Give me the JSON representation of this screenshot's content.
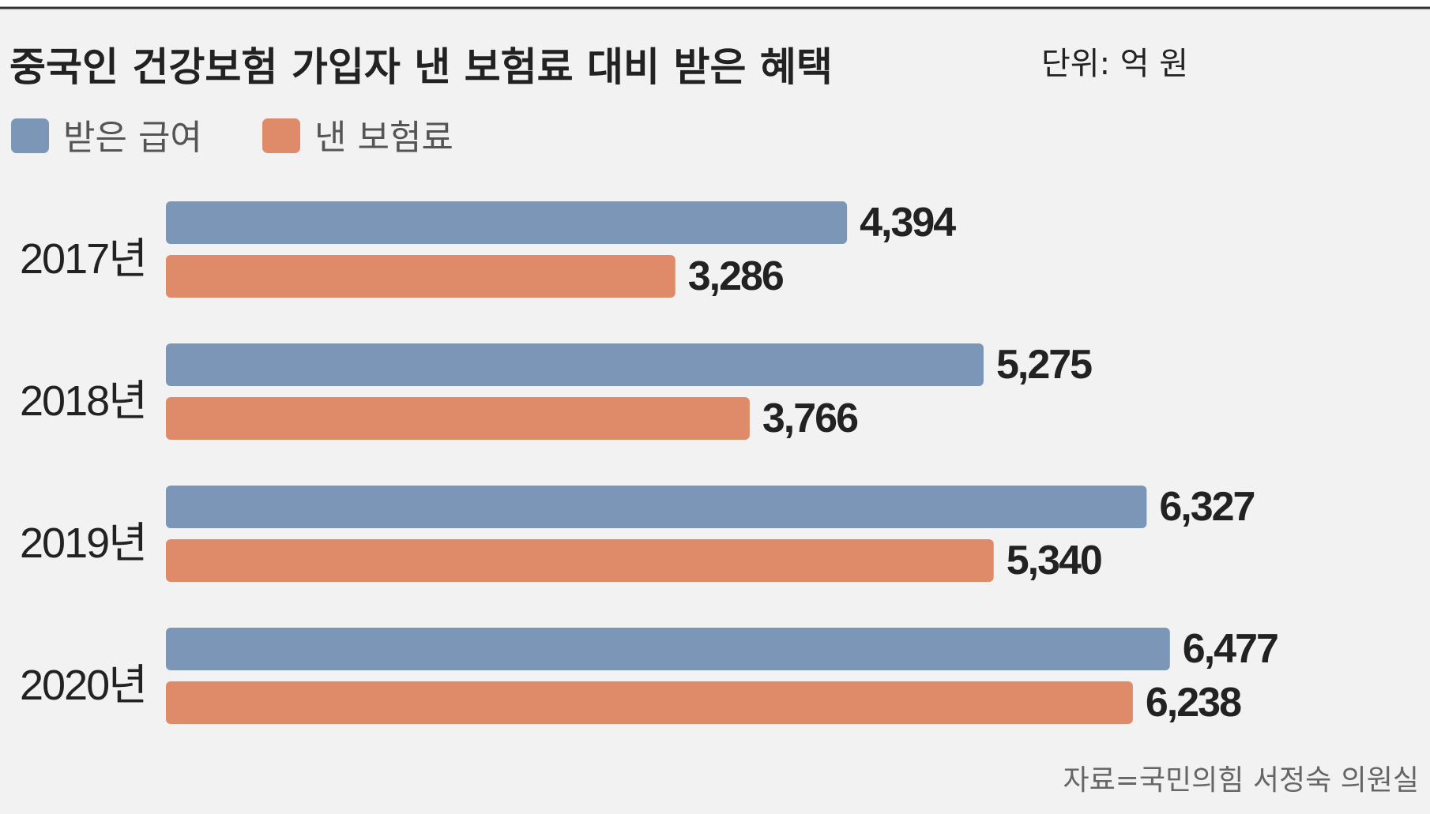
{
  "chart_data": {
    "type": "bar",
    "orientation": "horizontal",
    "title": "중국인 건강보험 가입자 낸 보험료 대비 받은 혜택",
    "unit": "단위: 억 원",
    "categories": [
      "2017년",
      "2018년",
      "2019년",
      "2020년"
    ],
    "series": [
      {
        "name": "받은 급여",
        "color": "#7b96b6",
        "values": [
          4394,
          5275,
          6327,
          6477
        ],
        "labels": [
          "4,394",
          "5,275",
          "6,327",
          "6,477"
        ]
      },
      {
        "name": "낸 보험료",
        "color": "#df8a68",
        "values": [
          3286,
          3766,
          5340,
          6238
        ],
        "labels": [
          "3,286",
          "3,766",
          "5,340",
          "6,238"
        ]
      }
    ],
    "xlim": [
      0,
      7000
    ],
    "grid": false,
    "legend_position": "top-left",
    "source": "자료=국민의힘 서정숙 의원실"
  },
  "colors": {
    "background": "#f2f2f2",
    "text": "#222222",
    "source_text": "#666666"
  }
}
